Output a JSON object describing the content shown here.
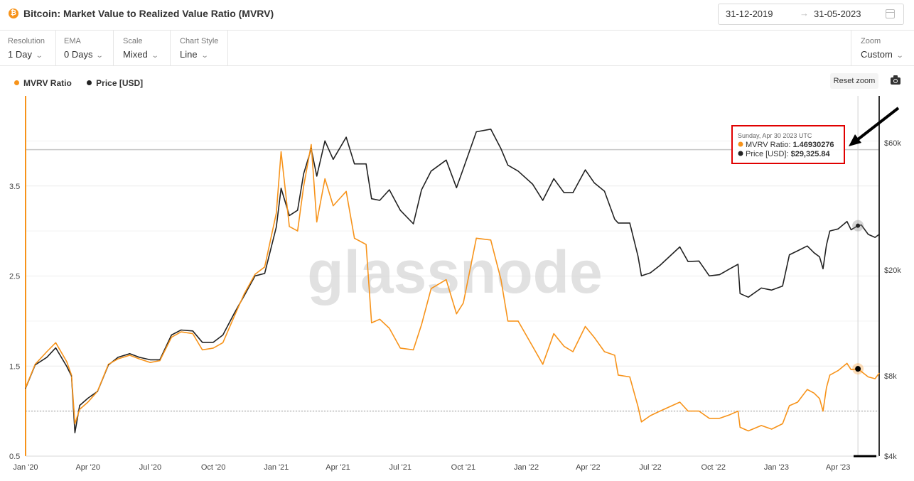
{
  "header": {
    "icon_glyph": "₿",
    "title": "Bitcoin: Market Value to Realized Value Ratio (MVRV)",
    "date_start": "31-12-2019",
    "date_arrow": "→",
    "date_end": "31-05-2023"
  },
  "controls": [
    {
      "label": "Resolution",
      "value": "1 Day"
    },
    {
      "label": "EMA",
      "value": "0 Days"
    },
    {
      "label": "Scale",
      "value": "Mixed"
    },
    {
      "label": "Chart Style",
      "value": "Line"
    }
  ],
  "zoom": {
    "label": "Zoom",
    "value": "Custom"
  },
  "toolbar": {
    "reset_zoom": "Reset zoom",
    "camera_icon": "camera-icon"
  },
  "watermark": "glassnode",
  "tooltip": {
    "date": "Sunday, Apr 30 2023 UTC",
    "mvrv_label": "MVRV Ratio:",
    "mvrv_value": "1.46930276",
    "price_label": "Price [USD]:",
    "price_value": "$29,325.84"
  },
  "colors": {
    "mvrv": "#f7931a",
    "price": "#222222",
    "highlight": "#e00000",
    "grid": "#ececec"
  },
  "chart_data": {
    "type": "line",
    "legend_position": "top-left",
    "grid": true,
    "series": [
      {
        "name": "MVRV Ratio",
        "axis": "left",
        "points": [
          [
            "2020-01-01",
            1.26
          ],
          [
            "2020-01-15",
            1.52
          ],
          [
            "2020-02-01",
            1.66
          ],
          [
            "2020-02-14",
            1.76
          ],
          [
            "2020-03-01",
            1.55
          ],
          [
            "2020-03-08",
            1.4
          ],
          [
            "2020-03-13",
            0.86
          ],
          [
            "2020-03-20",
            1.02
          ],
          [
            "2020-04-01",
            1.1
          ],
          [
            "2020-04-15",
            1.22
          ],
          [
            "2020-05-01",
            1.52
          ],
          [
            "2020-05-15",
            1.58
          ],
          [
            "2020-06-01",
            1.62
          ],
          [
            "2020-06-15",
            1.58
          ],
          [
            "2020-07-01",
            1.54
          ],
          [
            "2020-07-15",
            1.56
          ],
          [
            "2020-08-01",
            1.82
          ],
          [
            "2020-08-15",
            1.88
          ],
          [
            "2020-09-01",
            1.86
          ],
          [
            "2020-09-15",
            1.68
          ],
          [
            "2020-10-01",
            1.7
          ],
          [
            "2020-10-15",
            1.76
          ],
          [
            "2020-11-01",
            2.06
          ],
          [
            "2020-11-15",
            2.3
          ],
          [
            "2020-12-01",
            2.52
          ],
          [
            "2020-12-15",
            2.6
          ],
          [
            "2021-01-01",
            3.2
          ],
          [
            "2021-01-08",
            3.88
          ],
          [
            "2021-01-20",
            3.05
          ],
          [
            "2021-02-01",
            3.0
          ],
          [
            "2021-02-10",
            3.5
          ],
          [
            "2021-02-21",
            3.96
          ],
          [
            "2021-03-01",
            3.1
          ],
          [
            "2021-03-13",
            3.58
          ],
          [
            "2021-03-25",
            3.28
          ],
          [
            "2021-04-13",
            3.44
          ],
          [
            "2021-04-25",
            2.92
          ],
          [
            "2021-05-12",
            2.85
          ],
          [
            "2021-05-20",
            1.98
          ],
          [
            "2021-06-01",
            2.02
          ],
          [
            "2021-06-15",
            1.92
          ],
          [
            "2021-07-01",
            1.7
          ],
          [
            "2021-07-20",
            1.68
          ],
          [
            "2021-08-01",
            1.96
          ],
          [
            "2021-08-15",
            2.36
          ],
          [
            "2021-09-06",
            2.46
          ],
          [
            "2021-09-21",
            2.08
          ],
          [
            "2021-10-01",
            2.2
          ],
          [
            "2021-10-20",
            2.92
          ],
          [
            "2021-11-10",
            2.9
          ],
          [
            "2021-11-25",
            2.46
          ],
          [
            "2021-12-05",
            2.0
          ],
          [
            "2021-12-20",
            2.0
          ],
          [
            "2022-01-10",
            1.72
          ],
          [
            "2022-01-25",
            1.52
          ],
          [
            "2022-02-10",
            1.86
          ],
          [
            "2022-02-25",
            1.72
          ],
          [
            "2022-03-10",
            1.66
          ],
          [
            "2022-03-28",
            1.94
          ],
          [
            "2022-04-10",
            1.82
          ],
          [
            "2022-04-25",
            1.66
          ],
          [
            "2022-05-10",
            1.62
          ],
          [
            "2022-05-15",
            1.4
          ],
          [
            "2022-06-01",
            1.38
          ],
          [
            "2022-06-13",
            1.05
          ],
          [
            "2022-06-18",
            0.88
          ],
          [
            "2022-07-01",
            0.95
          ],
          [
            "2022-07-15",
            1.0
          ],
          [
            "2022-08-13",
            1.1
          ],
          [
            "2022-08-25",
            1.0
          ],
          [
            "2022-09-10",
            1.0
          ],
          [
            "2022-09-25",
            0.92
          ],
          [
            "2022-10-10",
            0.92
          ],
          [
            "2022-10-25",
            0.96
          ],
          [
            "2022-11-06",
            1.0
          ],
          [
            "2022-11-09",
            0.82
          ],
          [
            "2022-11-21",
            0.78
          ],
          [
            "2022-12-10",
            0.84
          ],
          [
            "2022-12-25",
            0.8
          ],
          [
            "2023-01-10",
            0.86
          ],
          [
            "2023-01-20",
            1.06
          ],
          [
            "2023-02-01",
            1.1
          ],
          [
            "2023-02-15",
            1.24
          ],
          [
            "2023-02-25",
            1.2
          ],
          [
            "2023-03-05",
            1.14
          ],
          [
            "2023-03-10",
            1.0
          ],
          [
            "2023-03-15",
            1.26
          ],
          [
            "2023-03-20",
            1.4
          ],
          [
            "2023-04-01",
            1.45
          ],
          [
            "2023-04-14",
            1.53
          ],
          [
            "2023-04-20",
            1.46
          ],
          [
            "2023-04-30",
            1.4693
          ],
          [
            "2023-05-05",
            1.44
          ],
          [
            "2023-05-15",
            1.38
          ],
          [
            "2023-05-25",
            1.36
          ],
          [
            "2023-05-31",
            1.42
          ]
        ]
      },
      {
        "name": "Price [USD]",
        "axis": "right",
        "points": [
          [
            "2020-01-01",
            7200
          ],
          [
            "2020-01-15",
            8800
          ],
          [
            "2020-02-01",
            9400
          ],
          [
            "2020-02-14",
            10200
          ],
          [
            "2020-03-01",
            8700
          ],
          [
            "2020-03-08",
            8000
          ],
          [
            "2020-03-13",
            4900
          ],
          [
            "2020-03-20",
            6200
          ],
          [
            "2020-04-01",
            6600
          ],
          [
            "2020-04-15",
            7000
          ],
          [
            "2020-05-01",
            8800
          ],
          [
            "2020-05-15",
            9400
          ],
          [
            "2020-06-01",
            9700
          ],
          [
            "2020-06-15",
            9400
          ],
          [
            "2020-07-01",
            9200
          ],
          [
            "2020-07-15",
            9200
          ],
          [
            "2020-08-01",
            11400
          ],
          [
            "2020-08-15",
            11900
          ],
          [
            "2020-09-01",
            11800
          ],
          [
            "2020-09-15",
            10700
          ],
          [
            "2020-10-01",
            10700
          ],
          [
            "2020-10-15",
            11400
          ],
          [
            "2020-11-01",
            13800
          ],
          [
            "2020-11-15",
            16000
          ],
          [
            "2020-12-01",
            19000
          ],
          [
            "2020-12-15",
            19400
          ],
          [
            "2021-01-01",
            29000
          ],
          [
            "2021-01-08",
            40500
          ],
          [
            "2021-01-20",
            32000
          ],
          [
            "2021-02-01",
            33500
          ],
          [
            "2021-02-10",
            46000
          ],
          [
            "2021-02-21",
            57000
          ],
          [
            "2021-03-01",
            45000
          ],
          [
            "2021-03-13",
            61000
          ],
          [
            "2021-03-25",
            52000
          ],
          [
            "2021-04-13",
            63000
          ],
          [
            "2021-04-25",
            50000
          ],
          [
            "2021-05-12",
            50000
          ],
          [
            "2021-05-20",
            37000
          ],
          [
            "2021-06-01",
            36500
          ],
          [
            "2021-06-15",
            40000
          ],
          [
            "2021-07-01",
            33500
          ],
          [
            "2021-07-20",
            29800
          ],
          [
            "2021-08-01",
            40000
          ],
          [
            "2021-08-15",
            47000
          ],
          [
            "2021-09-06",
            51700
          ],
          [
            "2021-09-21",
            40700
          ],
          [
            "2021-10-01",
            48000
          ],
          [
            "2021-10-20",
            66000
          ],
          [
            "2021-11-10",
            67500
          ],
          [
            "2021-11-25",
            57000
          ],
          [
            "2021-12-05",
            49500
          ],
          [
            "2021-12-20",
            47000
          ],
          [
            "2022-01-10",
            42000
          ],
          [
            "2022-01-25",
            36500
          ],
          [
            "2022-02-10",
            44000
          ],
          [
            "2022-02-25",
            39000
          ],
          [
            "2022-03-10",
            39000
          ],
          [
            "2022-03-28",
            47500
          ],
          [
            "2022-04-10",
            42500
          ],
          [
            "2022-04-25",
            39500
          ],
          [
            "2022-05-10",
            31000
          ],
          [
            "2022-05-15",
            30000
          ],
          [
            "2022-06-01",
            30000
          ],
          [
            "2022-06-13",
            22500
          ],
          [
            "2022-06-18",
            19000
          ],
          [
            "2022-07-01",
            19500
          ],
          [
            "2022-07-15",
            20800
          ],
          [
            "2022-08-13",
            24400
          ],
          [
            "2022-08-25",
            21500
          ],
          [
            "2022-09-10",
            21600
          ],
          [
            "2022-09-25",
            19000
          ],
          [
            "2022-10-10",
            19200
          ],
          [
            "2022-10-25",
            20200
          ],
          [
            "2022-11-06",
            21000
          ],
          [
            "2022-11-09",
            16300
          ],
          [
            "2022-11-21",
            15800
          ],
          [
            "2022-12-10",
            17100
          ],
          [
            "2022-12-25",
            16800
          ],
          [
            "2023-01-10",
            17400
          ],
          [
            "2023-01-20",
            22800
          ],
          [
            "2023-02-01",
            23600
          ],
          [
            "2023-02-15",
            24600
          ],
          [
            "2023-02-25",
            23200
          ],
          [
            "2023-03-05",
            22400
          ],
          [
            "2023-03-10",
            20200
          ],
          [
            "2023-03-15",
            24800
          ],
          [
            "2023-03-20",
            28000
          ],
          [
            "2023-04-01",
            28500
          ],
          [
            "2023-04-14",
            30400
          ],
          [
            "2023-04-20",
            28300
          ],
          [
            "2023-04-30",
            29325.84
          ],
          [
            "2023-05-05",
            29500
          ],
          [
            "2023-05-15",
            27200
          ],
          [
            "2023-05-25",
            26500
          ],
          [
            "2023-05-31",
            27200
          ]
        ]
      }
    ],
    "x_range": [
      "2020-01-01",
      "2023-05-31"
    ],
    "x_ticks": [
      {
        "date": "2020-01-01",
        "label": "Jan '20"
      },
      {
        "date": "2020-04-01",
        "label": "Apr '20"
      },
      {
        "date": "2020-07-01",
        "label": "Jul '20"
      },
      {
        "date": "2020-10-01",
        "label": "Oct '20"
      },
      {
        "date": "2021-01-01",
        "label": "Jan '21"
      },
      {
        "date": "2021-04-01",
        "label": "Apr '21"
      },
      {
        "date": "2021-07-01",
        "label": "Jul '21"
      },
      {
        "date": "2021-10-01",
        "label": "Oct '21"
      },
      {
        "date": "2022-01-01",
        "label": "Jan '22"
      },
      {
        "date": "2022-04-01",
        "label": "Apr '22"
      },
      {
        "date": "2022-07-01",
        "label": "Jul '22"
      },
      {
        "date": "2022-10-01",
        "label": "Oct '22"
      },
      {
        "date": "2023-01-01",
        "label": "Jan '23"
      },
      {
        "date": "2023-04-01",
        "label": "Apr '23"
      }
    ],
    "y_left": {
      "range": [
        0.5,
        4.5
      ],
      "ticks": [
        {
          "v": 0.5,
          "label": "0.5"
        },
        {
          "v": 1.5,
          "label": "1.5"
        },
        {
          "v": 2.5,
          "label": "2.5"
        },
        {
          "v": 3.5,
          "label": "3.5"
        }
      ],
      "minor_grid": [
        1.0,
        2.0,
        3.0,
        4.0
      ]
    },
    "y_right": {
      "scale": "log",
      "range": [
        4000,
        90000
      ],
      "ticks": [
        {
          "v": 4000,
          "label": "$4k"
        },
        {
          "v": 8000,
          "label": "$8k"
        },
        {
          "v": 20000,
          "label": "$20k"
        },
        {
          "v": 60000,
          "label": "$60k"
        }
      ]
    },
    "reference_line_mvrv": 1.0,
    "highlight_date": "2023-04-30"
  }
}
